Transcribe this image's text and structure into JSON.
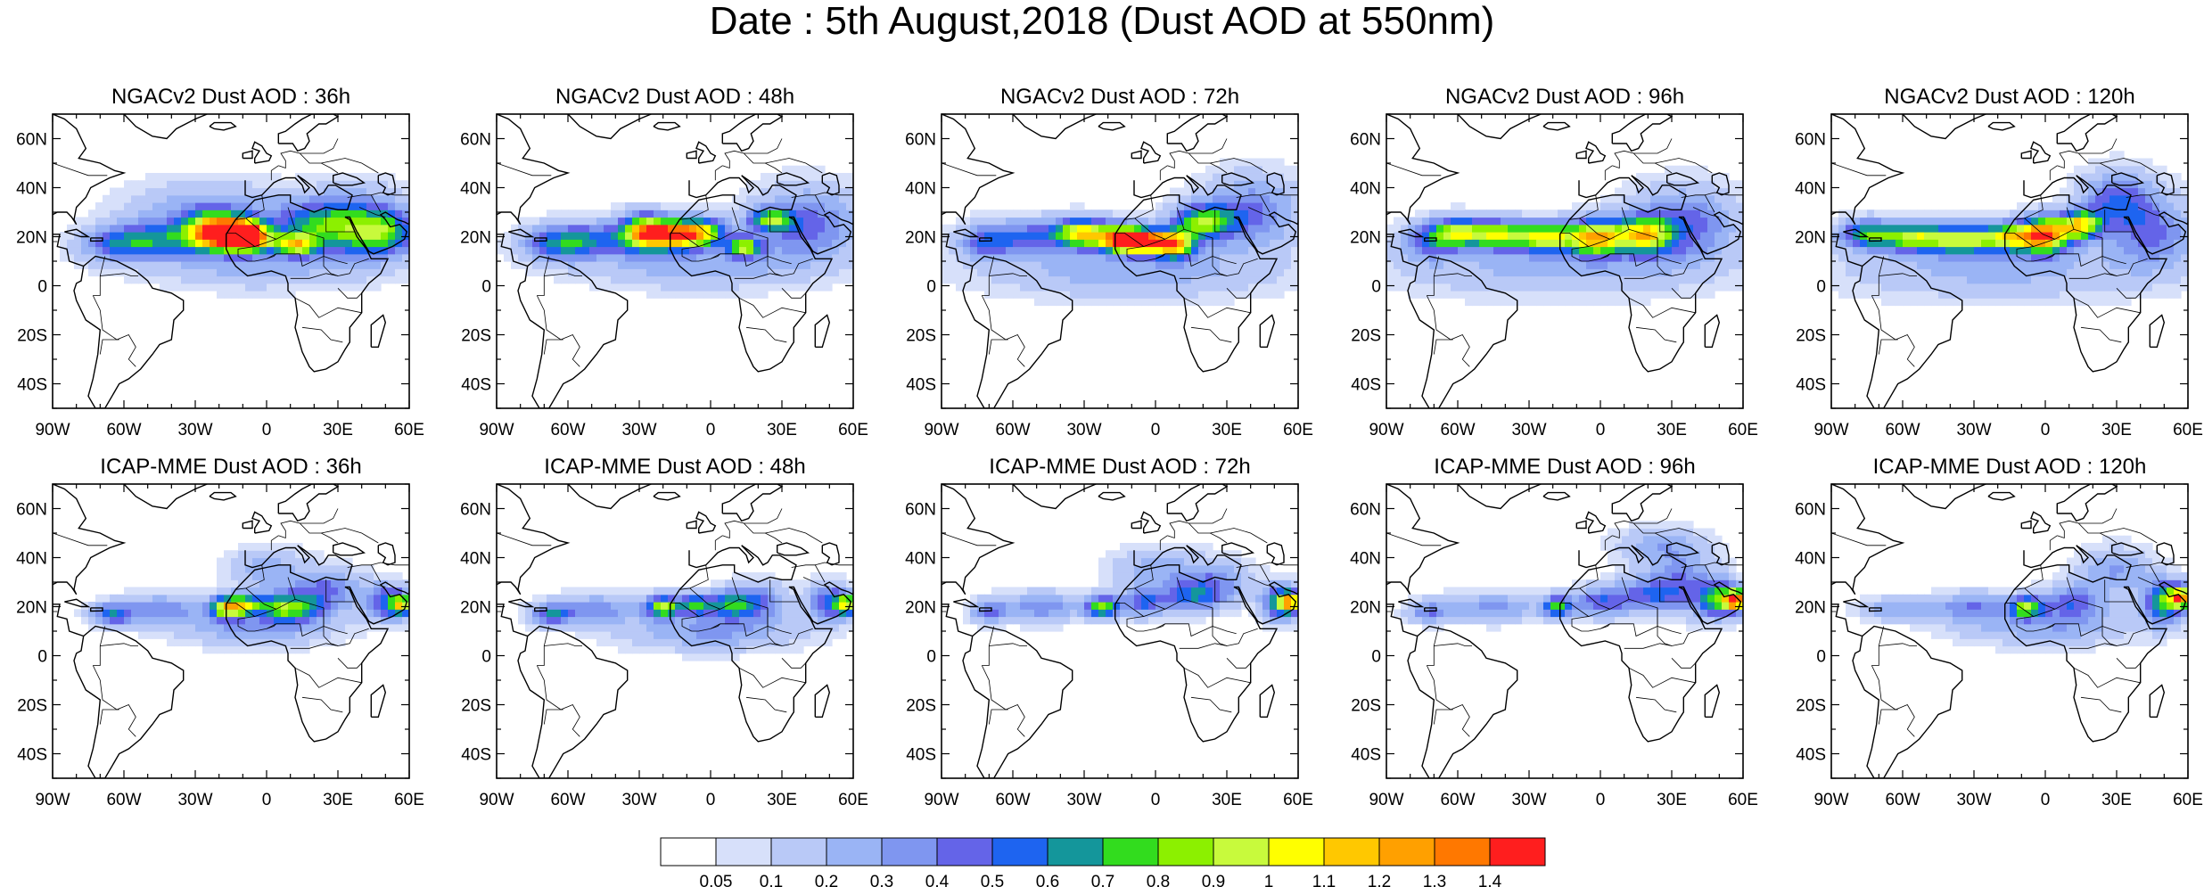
{
  "title": "Date : 5th August,2018 (Dust AOD at 550nm)",
  "rows": [
    {
      "model": "NGACv2",
      "panels": [
        {
          "title": "NGACv2 Dust AOD : 36h"
        },
        {
          "title": "NGACv2 Dust AOD : 48h"
        },
        {
          "title": "NGACv2 Dust AOD : 72h"
        },
        {
          "title": "NGACv2 Dust AOD : 96h"
        },
        {
          "title": "NGACv2 Dust AOD : 120h"
        }
      ]
    },
    {
      "model": "ICAP-MME",
      "panels": [
        {
          "title": "ICAP-MME Dust AOD : 36h"
        },
        {
          "title": "ICAP-MME Dust AOD : 48h"
        },
        {
          "title": "ICAP-MME Dust AOD : 72h"
        },
        {
          "title": "ICAP-MME Dust AOD : 96h"
        },
        {
          "title": "ICAP-MME Dust AOD : 120h"
        }
      ]
    }
  ],
  "lon_range": [
    -90,
    60
  ],
  "lat_range": [
    -50,
    70
  ],
  "lon_ticks": [
    {
      "value": -90,
      "label": "90W"
    },
    {
      "value": -60,
      "label": "60W"
    },
    {
      "value": -30,
      "label": "30W"
    },
    {
      "value": 0,
      "label": "0"
    },
    {
      "value": 30,
      "label": "30E"
    },
    {
      "value": 60,
      "label": "60E"
    }
  ],
  "lat_ticks": [
    {
      "value": 60,
      "label": "60N"
    },
    {
      "value": 40,
      "label": "40N"
    },
    {
      "value": 20,
      "label": "20N"
    },
    {
      "value": 0,
      "label": "0"
    },
    {
      "value": -20,
      "label": "20S"
    },
    {
      "value": -40,
      "label": "40S"
    }
  ],
  "colorbar": {
    "colors": [
      "#ffffff",
      "#d7e0fa",
      "#b9c9f7",
      "#9ab4f5",
      "#7f96f0",
      "#6464e8",
      "#1e64f0",
      "#14969b",
      "#32dc1e",
      "#8cf000",
      "#c8fa3c",
      "#ffff00",
      "#ffc800",
      "#ffa000",
      "#ff7800",
      "#ff1e1e"
    ],
    "labels": [
      "0.05",
      "0.1",
      "0.2",
      "0.3",
      "0.4",
      "0.5",
      "0.6",
      "0.7",
      "0.8",
      "0.9",
      "1",
      "1.1",
      "1.2",
      "1.3",
      "1.4"
    ]
  }
}
